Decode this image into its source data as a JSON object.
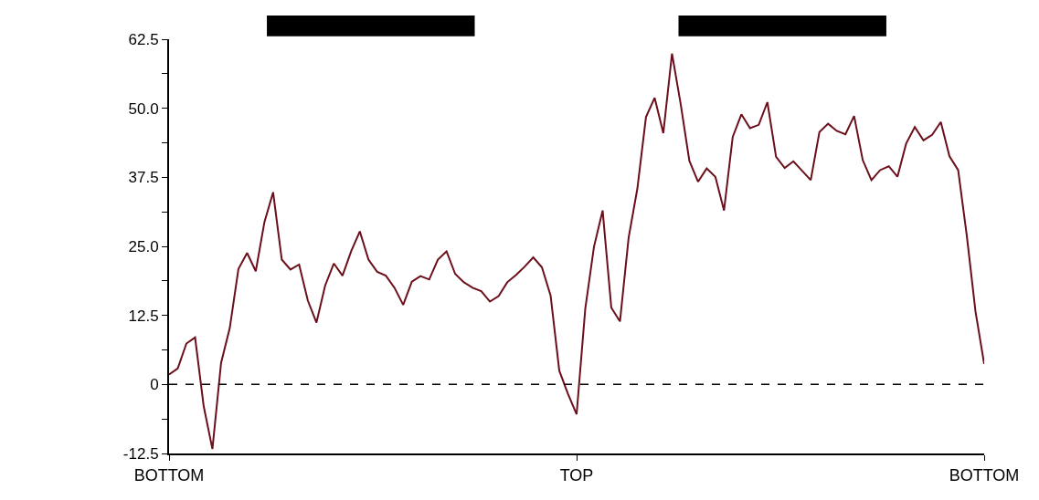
{
  "chart_data": {
    "type": "line",
    "categories": [
      "BOTTOM",
      null,
      null,
      null,
      null,
      null,
      null,
      null,
      null,
      null,
      null,
      null,
      null,
      null,
      null,
      null,
      null,
      null,
      null,
      null,
      null,
      null,
      null,
      null,
      null,
      null,
      null,
      null,
      null,
      null,
      null,
      null,
      null,
      null,
      null,
      null,
      null,
      null,
      null,
      null,
      null,
      null,
      null,
      null,
      null,
      null,
      null,
      "TOP",
      null,
      null,
      null,
      null,
      null,
      null,
      null,
      null,
      null,
      null,
      null,
      null,
      null,
      null,
      null,
      null,
      null,
      null,
      null,
      null,
      null,
      null,
      null,
      null,
      null,
      null,
      null,
      null,
      null,
      null,
      null,
      null,
      null,
      null,
      null,
      null,
      null,
      null,
      null,
      null,
      null,
      null,
      null,
      null,
      null,
      null,
      "BOTTOM"
    ],
    "series": [
      {
        "color": "#6b0f1a",
        "values": [
          1.8,
          2.9,
          7.4,
          8.5,
          -4.0,
          -11.7,
          3.9,
          10.2,
          20.9,
          23.8,
          20.5,
          29.4,
          34.8,
          22.6,
          20.8,
          21.7,
          15.2,
          11.2,
          17.9,
          21.9,
          19.7,
          24.1,
          27.7,
          22.6,
          20.4,
          19.7,
          17.5,
          14.4,
          18.6,
          19.6,
          19.0,
          22.6,
          24.1,
          20.0,
          18.5,
          17.5,
          16.9,
          15.0,
          16.0,
          18.5,
          19.8,
          21.3,
          23.0,
          21.2,
          16.1,
          2.5,
          -1.7,
          -5.4,
          13.7,
          24.9,
          31.5,
          13.9,
          11.4,
          26.6,
          35.4,
          48.4,
          51.9,
          45.5,
          59.9,
          50.8,
          40.5,
          36.7,
          39.1,
          37.6,
          31.5,
          44.8,
          48.9,
          46.4,
          47.0,
          51.1,
          41.2,
          39.2,
          40.4,
          38.7,
          37.0,
          45.7,
          47.2,
          45.9,
          45.3,
          48.6,
          40.6,
          37.0,
          38.8,
          39.5,
          37.6,
          43.6,
          46.6,
          44.2,
          45.2,
          47.5,
          41.3,
          38.8,
          26.9,
          13.2,
          3.7
        ]
      }
    ],
    "ylim": [
      -12.5,
      62.5
    ],
    "yticks": [
      -12.5,
      {
        "value": -6.25,
        "label": null
      },
      0,
      {
        "value": 6.25,
        "label": null
      },
      12.5,
      {
        "value": 18.75,
        "label": null
      },
      {
        "value": 25,
        "label": "25.0"
      },
      {
        "value": 31.25,
        "label": null
      },
      37.5,
      {
        "value": 43.75,
        "label": null
      },
      {
        "value": 50,
        "label": "50.0"
      },
      {
        "value": 56.25,
        "label": null
      },
      62.5
    ],
    "ref_lines": [
      {
        "axis": "y",
        "value": 0,
        "color": "#000000",
        "line_style": "dashed"
      }
    ],
    "marker": "none",
    "line_style": "solid"
  }
}
